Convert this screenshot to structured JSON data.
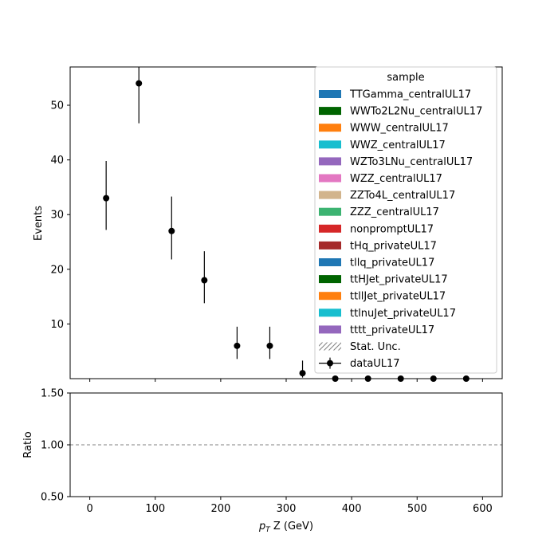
{
  "chart_data": [
    {
      "type": "scatter",
      "panel": "main",
      "xlim": [
        -30,
        630
      ],
      "ylim": [
        0,
        57
      ],
      "ylabel": "Events",
      "yticks": [
        10,
        20,
        30,
        40,
        50
      ],
      "data": {
        "name": "dataUL17",
        "points": [
          {
            "x": 25,
            "y": 33,
            "lo": 27.2,
            "hi": 39.8
          },
          {
            "x": 75,
            "y": 54,
            "lo": 46.7,
            "hi": 57
          },
          {
            "x": 125,
            "y": 27,
            "lo": 21.8,
            "hi": 33.3
          },
          {
            "x": 175,
            "y": 18,
            "lo": 13.8,
            "hi": 23.3
          },
          {
            "x": 225,
            "y": 6,
            "lo": 3.6,
            "hi": 9.5
          },
          {
            "x": 275,
            "y": 6,
            "lo": 3.6,
            "hi": 9.5
          },
          {
            "x": 325,
            "y": 1,
            "lo": 0.2,
            "hi": 3.3
          },
          {
            "x": 375,
            "y": 0,
            "lo": 0,
            "hi": 0
          },
          {
            "x": 425,
            "y": 0,
            "lo": 0,
            "hi": 0
          },
          {
            "x": 475,
            "y": 0,
            "lo": 0,
            "hi": 0
          },
          {
            "x": 525,
            "y": 0,
            "lo": 0,
            "hi": 0
          },
          {
            "x": 575,
            "y": 0,
            "lo": 0,
            "hi": 0
          }
        ]
      },
      "legend": {
        "title": "sample",
        "placement": "top-right",
        "entries": [
          {
            "label": "TTGamma_centralUL17",
            "color": "#1f77b4",
            "kind": "patch"
          },
          {
            "label": "WWTo2L2Nu_centralUL17",
            "color": "#006400",
            "kind": "patch"
          },
          {
            "label": "WWW_centralUL17",
            "color": "#ff7f0e",
            "kind": "patch"
          },
          {
            "label": "WWZ_centralUL17",
            "color": "#17becf",
            "kind": "patch"
          },
          {
            "label": "WZTo3LNu_centralUL17",
            "color": "#9467bd",
            "kind": "patch"
          },
          {
            "label": "WZZ_centralUL17",
            "color": "#e377c2",
            "kind": "patch"
          },
          {
            "label": "ZZTo4L_centralUL17",
            "color": "#d2b48c",
            "kind": "patch"
          },
          {
            "label": "ZZZ_centralUL17",
            "color": "#3cb371",
            "kind": "patch"
          },
          {
            "label": "nonpromptUL17",
            "color": "#d62728",
            "kind": "patch"
          },
          {
            "label": "tHq_privateUL17",
            "color": "#a52a2a",
            "kind": "patch"
          },
          {
            "label": "tllq_privateUL17",
            "color": "#1f77b4",
            "kind": "patch"
          },
          {
            "label": "ttHJet_privateUL17",
            "color": "#006400",
            "kind": "patch"
          },
          {
            "label": "ttllJet_privateUL17",
            "color": "#ff7f0e",
            "kind": "patch"
          },
          {
            "label": "ttlnuJet_privateUL17",
            "color": "#17becf",
            "kind": "patch"
          },
          {
            "label": "tttt_privateUL17",
            "color": "#9467bd",
            "kind": "patch"
          },
          {
            "label": "Stat. Unc.",
            "color": "#808080",
            "kind": "hatch"
          },
          {
            "label": "dataUL17",
            "color": "#000000",
            "kind": "errorbar"
          }
        ]
      }
    },
    {
      "type": "line",
      "panel": "ratio",
      "xlim": [
        -30,
        630
      ],
      "ylim": [
        0.5,
        1.5
      ],
      "xlabel_main": "p",
      "xlabel_sub": "T",
      "xlabel_rest": " Z (GeV)",
      "ylabel": "Ratio",
      "xticks": [
        0,
        100,
        200,
        300,
        400,
        500,
        600
      ],
      "yticks": [
        "0.50",
        "1.00",
        "1.50"
      ],
      "reference_line": 1.0
    }
  ]
}
